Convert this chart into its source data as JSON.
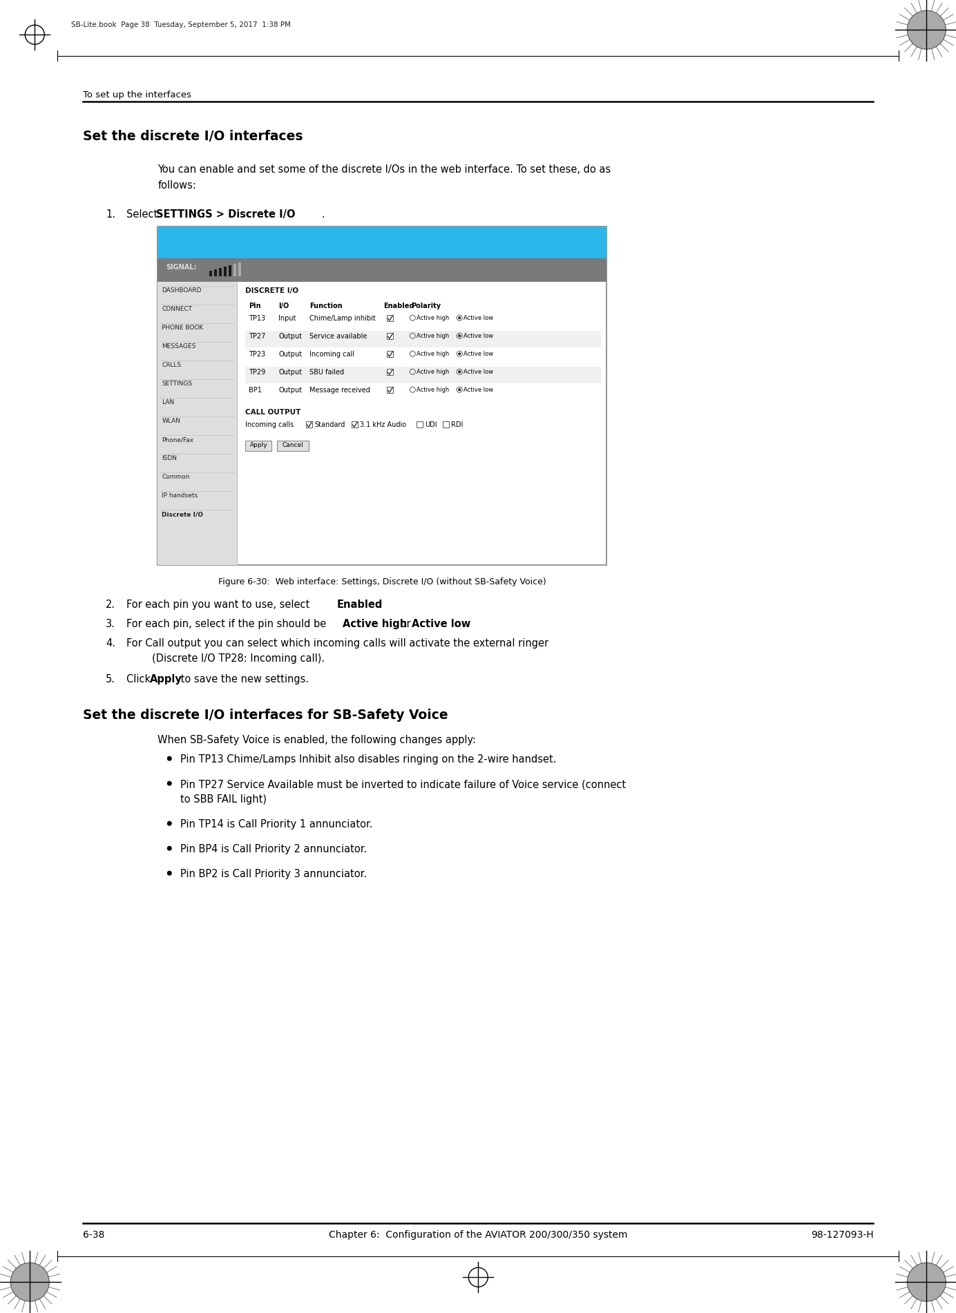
{
  "page_header_text": "SB-Lite.book  Page 38  Tuesday, September 5, 2017  1:38 PM",
  "section_header": "To set up the interfaces",
  "main_heading": "Set the discrete I/O interfaces",
  "intro_line1": "You can enable and set some of the discrete I/Os in the web interface. To set these, do as",
  "intro_line2": "follows:",
  "figure_caption": "Figure 6-30:  Web interface: Settings, Discrete I/O (without SB-Safety Voice)",
  "step4_line1": "For Call output you can select which incoming calls will activate the external ringer",
  "step4_line2": "        (Discrete I/O TP28: Incoming call).",
  "section2_heading": "Set the discrete I/O interfaces for SB-Safety Voice",
  "section2_intro": "When SB-Safety Voice is enabled, the following changes apply:",
  "bullet1": "Pin TP13 Chime/Lamps Inhibit also disables ringing on the 2-wire handset.",
  "bullet2_line1": "Pin TP27 Service Available must be inverted to indicate failure of Voice service (connect",
  "bullet2_line2": "to SBB FAIL light)",
  "bullet3": "Pin TP14 is Call Priority 1 annunciator.",
  "bullet4": "Pin BP4 is Call Priority 2 annunciator.",
  "bullet5": "Pin BP2 is Call Priority 3 annunciator.",
  "footer_left": "6-38",
  "footer_center": "Chapter 6:  Configuration of the AVIATOR 200/300/350 system",
  "footer_right": "98-127093-H",
  "bg_color": "#ffffff",
  "ui_blue": "#29b6e8",
  "ui_gray": "#7a7a7a",
  "ui_sidebar_bg": "#dedede",
  "ui_content_bg": "#f2f2f2",
  "ui_white": "#ffffff",
  "ui_border": "#999999"
}
